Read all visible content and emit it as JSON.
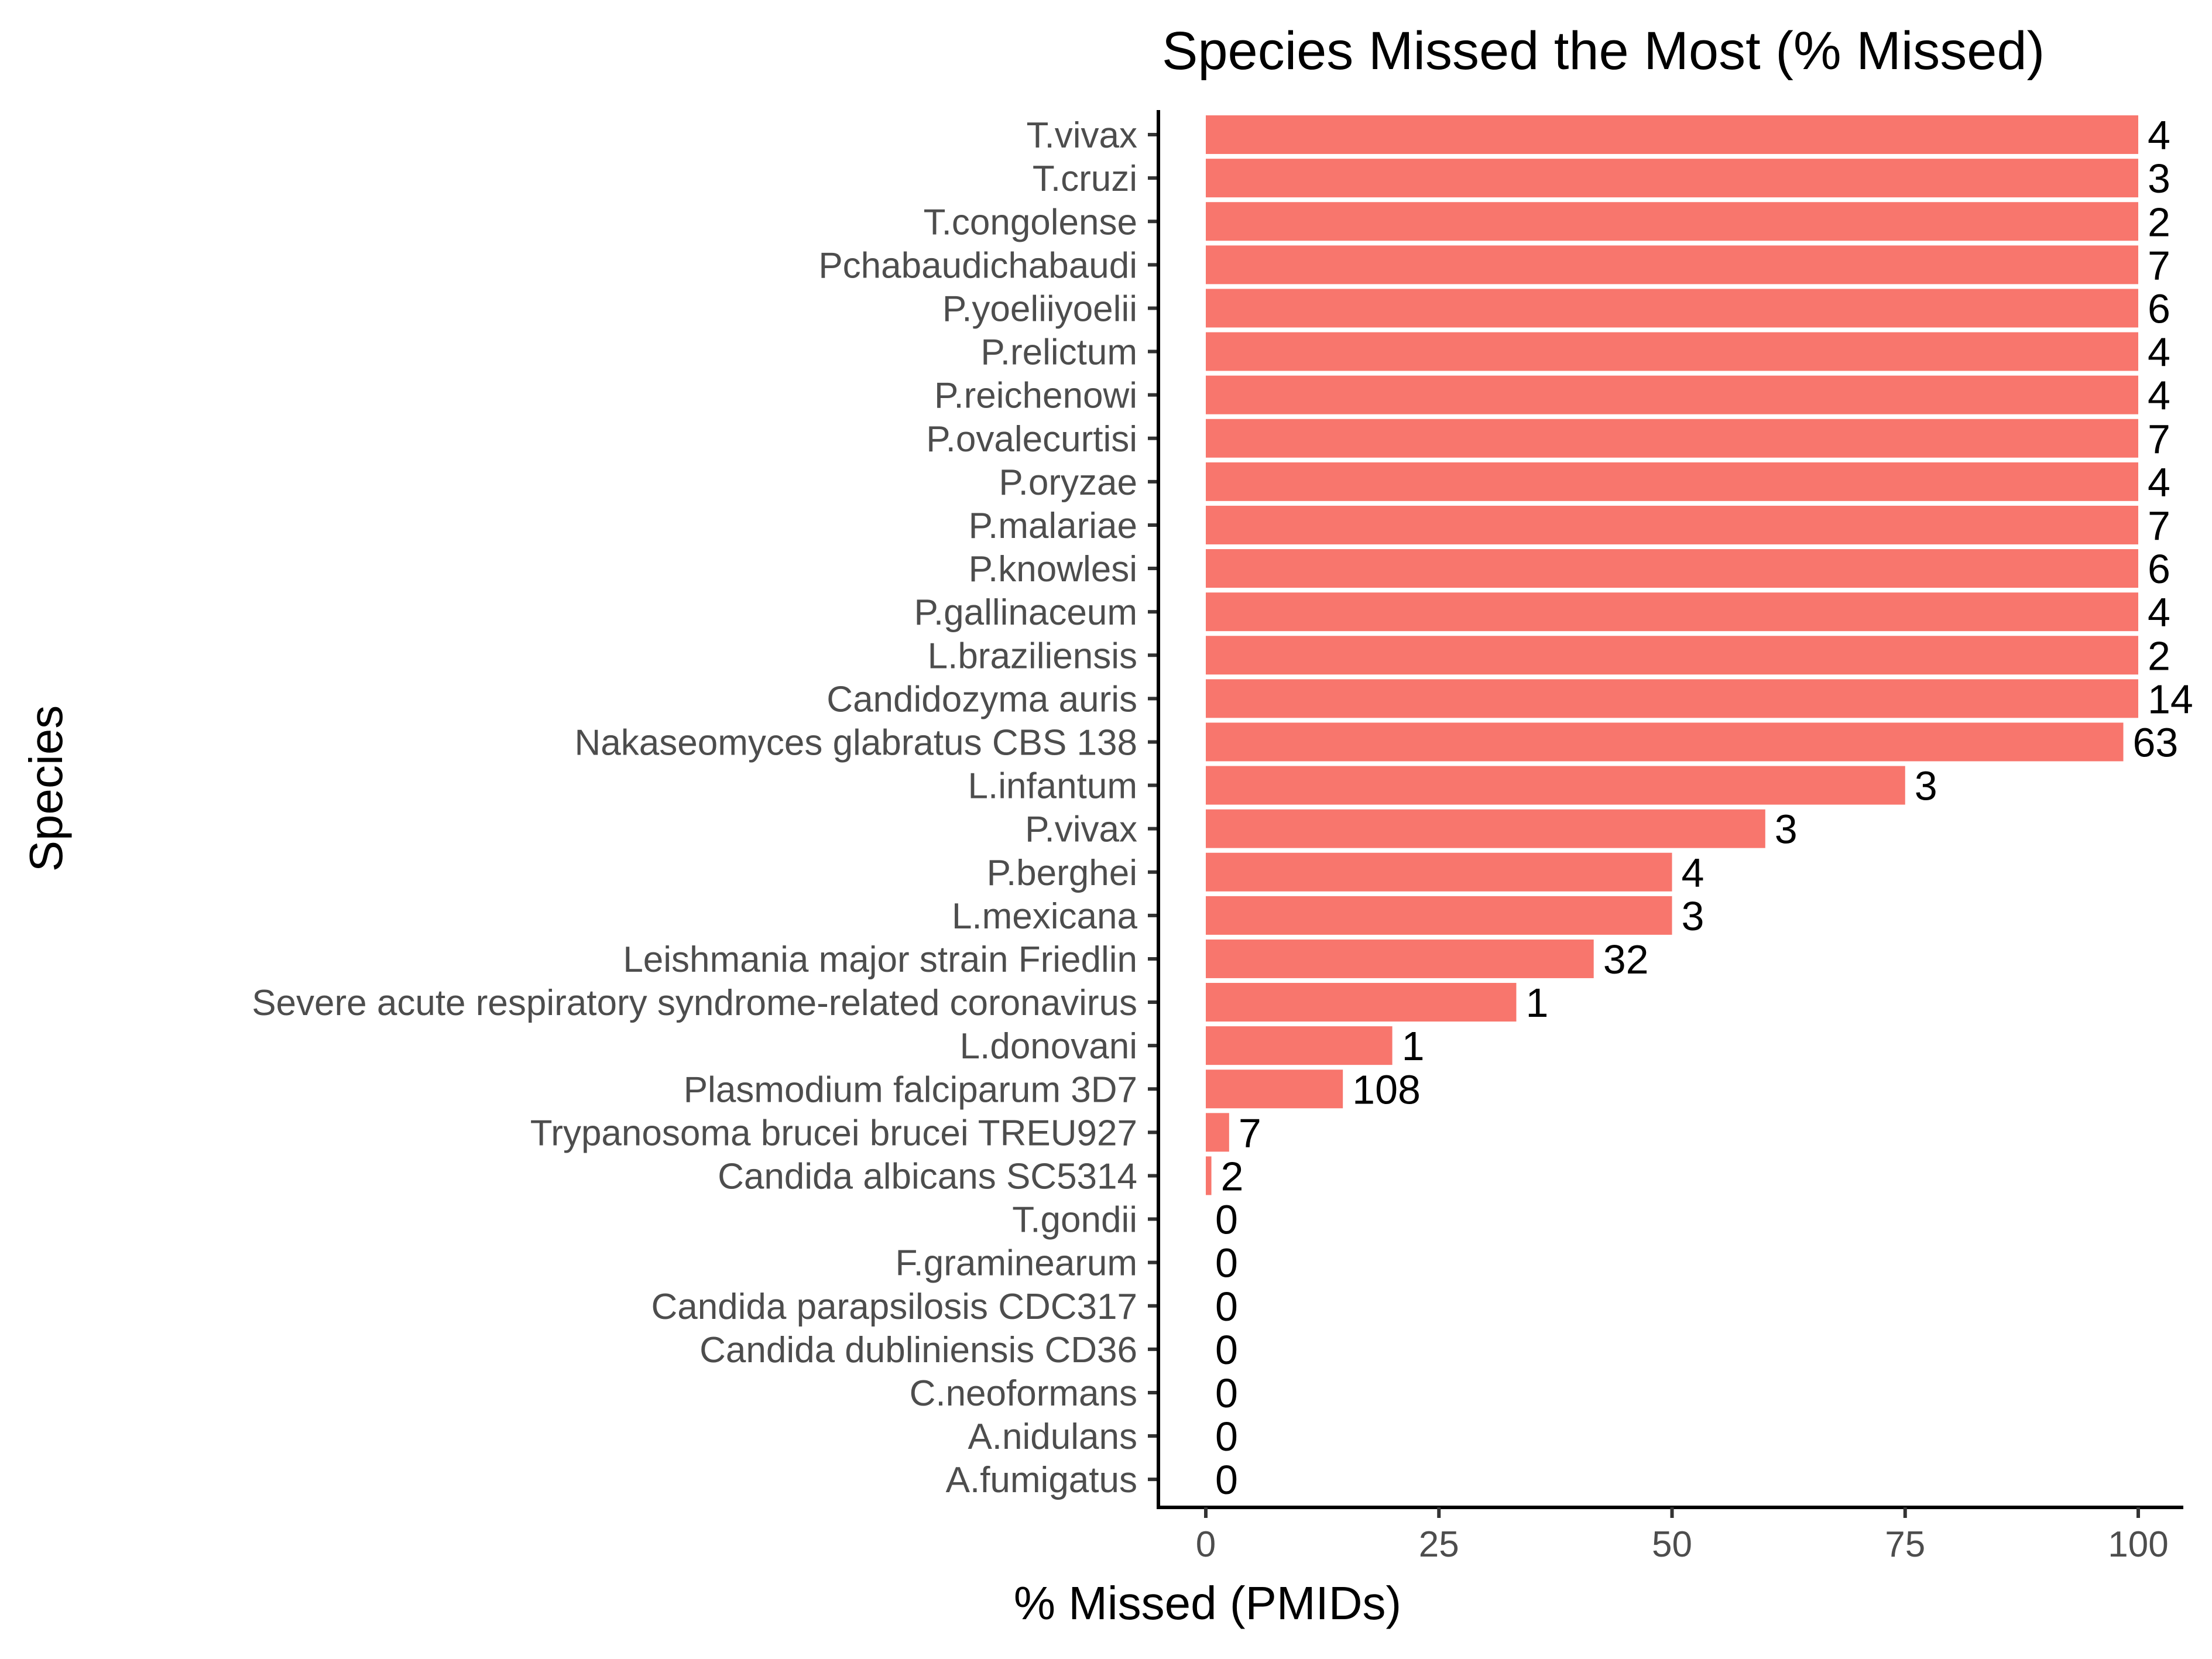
{
  "chart_data": {
    "type": "bar",
    "orientation": "horizontal",
    "title": "Species Missed the Most (% Missed)",
    "xlabel": "% Missed (PMIDs)",
    "ylabel": "Species",
    "xlim": [
      0,
      100
    ],
    "xticks": [
      0,
      25,
      50,
      75,
      100
    ],
    "grid": false,
    "bar_color": "#F8766D",
    "categories": [
      "T.vivax",
      "T.cruzi",
      "T.congolense",
      "Pchabaudichabaudi",
      "P.yoeliiyoelii",
      "P.relictum",
      "P.reichenowi",
      "P.ovalecurtisi",
      "P.oryzae",
      "P.malariae",
      "P.knowlesi",
      "P.gallinaceum",
      "L.braziliensis",
      "Candidozyma auris",
      "Nakaseomyces glabratus CBS 138",
      "L.infantum",
      "P.vivax",
      "P.berghei",
      "L.mexicana",
      "Leishmania major strain Friedlin",
      "Severe acute respiratory syndrome-related coronavirus",
      "L.donovani",
      "Plasmodium falciparum 3D7",
      "Trypanosoma brucei brucei TREU927",
      "Candida albicans SC5314",
      "T.gondii",
      "F.graminearum",
      "Candida parapsilosis CDC317",
      "Candida dubliniensis CD36",
      "C.neoformans",
      "A.nidulans",
      "A.fumigatus"
    ],
    "values": [
      100,
      100,
      100,
      100,
      100,
      100,
      100,
      100,
      100,
      100,
      100,
      100,
      100,
      100,
      98.4,
      75,
      60,
      50,
      50,
      41.6,
      33.3,
      20,
      14.7,
      2.5,
      0.6,
      0,
      0,
      0,
      0,
      0,
      0,
      0
    ],
    "labels": [
      "4",
      "3",
      "2",
      "7",
      "6",
      "4",
      "4",
      "7",
      "4",
      "7",
      "6",
      "4",
      "2",
      "14",
      "63",
      "3",
      "3",
      "4",
      "3",
      "32",
      "1",
      "1",
      "108",
      "7",
      "2",
      "0",
      "0",
      "0",
      "0",
      "0",
      "0",
      "0"
    ]
  }
}
